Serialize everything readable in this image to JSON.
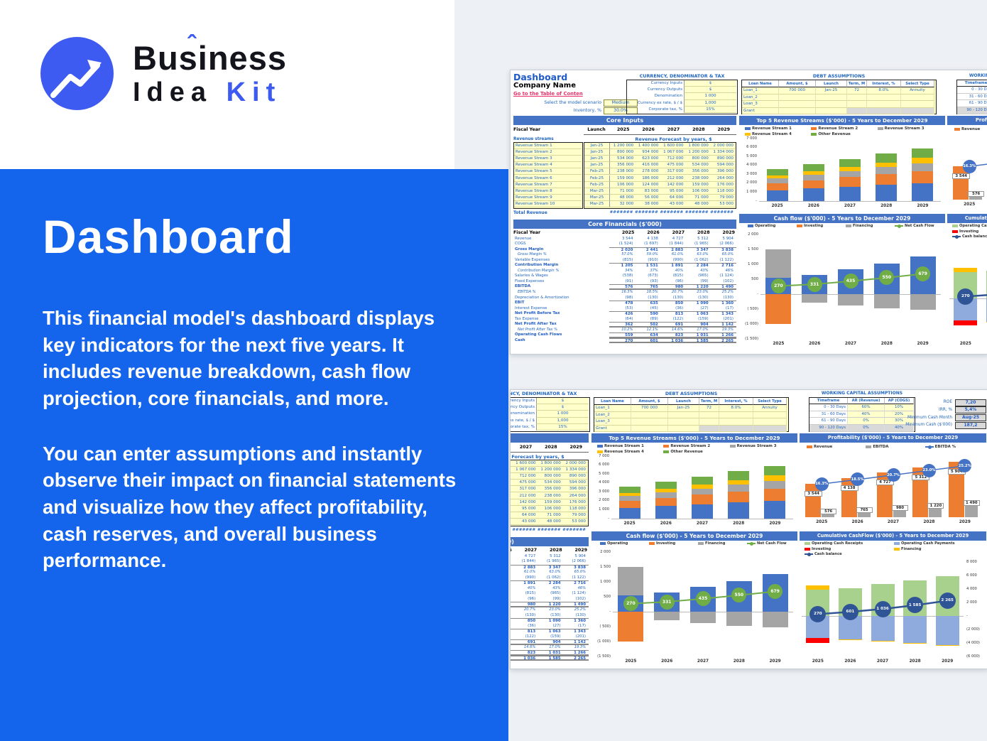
{
  "page": {
    "brand": {
      "word1": "Business",
      "accent": "ˆ",
      "word2": "Idea",
      "word3": "Kit"
    },
    "hero": {
      "title": "Dashboard",
      "p1": "This financial model's dashboard displays key indicators for the next five years. It includes revenue breakdown, cash flow projection, core financials, and more.",
      "p2": "You can enter assumptions and instantly observe their impact on financial statements and visualize how they affect profitability, cash reserves, and overall business performance."
    },
    "colors": {
      "hero_blue": "#1565ec",
      "logo_blue": "#3d5af1",
      "band_gray": "#edf0f4",
      "banner_blue": "#4472c4",
      "cell_yellow": "#ffffcc",
      "label_blue": "#2166c0",
      "link_red": "#e8336d"
    }
  },
  "sheet": {
    "header": {
      "title": "Dashboard",
      "company": "Company Name",
      "link": "Go to the Table of Conten",
      "scenario_label": "Select the model scenario",
      "scenario_value": "Medium",
      "inventory_label": "Inventory, %",
      "inventory_value": "30.0%"
    },
    "currency": {
      "title": "CURRENCY, DENOMINATOR & TAX",
      "rows": [
        [
          "Currency Inputs",
          "$"
        ],
        [
          "Currency Outputs",
          "$"
        ],
        [
          "Denomination",
          "1 000"
        ],
        [
          "Currency ex rate, $ / $",
          "1,000"
        ],
        [
          "Corporate tax, %",
          "15%"
        ]
      ]
    },
    "debt": {
      "title": "DEBT ASSUMPTIONS",
      "headers": [
        "Loan Name",
        "Amount, $",
        "Launch",
        "Term, M",
        "Interest, %",
        "Select Type"
      ],
      "rows": [
        [
          "Loan_1",
          "700 000",
          "Jan-25",
          "72",
          "8.0%",
          "Annuity"
        ],
        [
          "Loan_2",
          "",
          "",
          "",
          "",
          ""
        ],
        [
          "Loan_3",
          "",
          "",
          "",
          "",
          ""
        ],
        [
          "Grant",
          "",
          "",
          "",
          "",
          ""
        ]
      ]
    },
    "working": {
      "title": "WORKING CAPITAL ASSUMPTIONS",
      "headers": [
        "Timeframe",
        "AR (Revenue)",
        "AP (COGS)"
      ],
      "rows": [
        [
          "0 - 30 Days",
          "60%",
          "10%"
        ],
        [
          "31 - 60 Days",
          "40%",
          "20%"
        ],
        [
          "61 - 90 Days",
          "0%",
          "30%"
        ],
        [
          "90 - 120 Days",
          "0%",
          "40%"
        ]
      ]
    },
    "kpis": [
      [
        "ROE",
        "7,20"
      ],
      [
        "IRR, %",
        "5,4%"
      ],
      [
        "Minimum Cash Month",
        "Aug-25"
      ],
      [
        "Minimum Cash ($'000)",
        "187,2"
      ]
    ],
    "core_inputs": {
      "banner": "Core Inputs",
      "fiscal_label": "Fiscal Year",
      "launch_label": "Launch",
      "years": [
        "2025",
        "2026",
        "2027",
        "2028",
        "2029"
      ],
      "streams_label": "Revenue streams",
      "forecast_label": "Revenue Forecast by years, $",
      "streams": [
        {
          "name": "Revenue Stream 1",
          "launch": "Jan-25",
          "values": [
            "1 200 000",
            "1 400 000",
            "1 600 000",
            "1 800 000",
            "2 000 000"
          ]
        },
        {
          "name": "Revenue Stream 2",
          "launch": "Jan-25",
          "values": [
            "800 000",
            "934 000",
            "1 067 000",
            "1 200 000",
            "1 334 000"
          ]
        },
        {
          "name": "Revenue Stream 3",
          "launch": "Jan-25",
          "values": [
            "534 000",
            "623 000",
            "712 000",
            "800 000",
            "890 000"
          ]
        },
        {
          "name": "Revenue Stream 4",
          "launch": "Jan-25",
          "values": [
            "356 000",
            "416 000",
            "475 000",
            "534 000",
            "594 000"
          ]
        },
        {
          "name": "Revenue Stream 5",
          "launch": "Feb-25",
          "values": [
            "238 000",
            "278 000",
            "317 000",
            "356 000",
            "396 000"
          ]
        },
        {
          "name": "Revenue Stream 6",
          "launch": "Feb-25",
          "values": [
            "159 000",
            "186 000",
            "212 000",
            "238 000",
            "264 000"
          ]
        },
        {
          "name": "Revenue Stream 7",
          "launch": "Feb-25",
          "values": [
            "106 000",
            "124 000",
            "142 000",
            "159 000",
            "176 000"
          ]
        },
        {
          "name": "Revenue Stream 8",
          "launch": "Mar-25",
          "values": [
            "71 000",
            "83 000",
            "95 000",
            "106 000",
            "118 000"
          ]
        },
        {
          "name": "Revenue Stream 9",
          "launch": "Mar-25",
          "values": [
            "48 000",
            "56 000",
            "64 000",
            "71 000",
            "79 000"
          ]
        },
        {
          "name": "Revenue Stream 10",
          "launch": "Mar-25",
          "values": [
            "32 000",
            "38 000",
            "43 000",
            "48 000",
            "53 000"
          ]
        }
      ],
      "total_label": "Total Revenue",
      "total_values": [
        "#######",
        "#######",
        "#######",
        "#######",
        "#######"
      ]
    },
    "core_fin": {
      "banner": "Core Financials ($'000)",
      "fiscal_label": "Fiscal Year",
      "years": [
        "2025",
        "2026",
        "2027",
        "2028",
        "2029"
      ],
      "rows": [
        {
          "l": "Revenue",
          "s": "p",
          "b": "",
          "v": [
            "3 544",
            "4 138",
            "4 727",
            "5 312",
            "5 904"
          ]
        },
        {
          "l": "COGS",
          "s": "p",
          "b": "",
          "v": [
            "(1 524)",
            "(1 697)",
            "(1 844)",
            "(1 965)",
            "(2 066)"
          ]
        },
        {
          "l": "Gross Margin",
          "s": "b",
          "b": "t",
          "v": [
            "2 020",
            "2 441",
            "2 883",
            "3 347",
            "3 838"
          ]
        },
        {
          "l": "Gross Margin %",
          "s": "i",
          "b": "",
          "v": [
            "57.0%",
            "59.0%",
            "61.0%",
            "63.0%",
            "65.0%"
          ]
        },
        {
          "l": "Variable Expenses",
          "s": "p",
          "b": "",
          "v": [
            "(815)",
            "(910)",
            "(990)",
            "(1 062)",
            "(1 122)"
          ]
        },
        {
          "l": "Contribution Margin",
          "s": "b",
          "b": "t",
          "v": [
            "1 205",
            "1 531",
            "1 891",
            "2 284",
            "2 716"
          ]
        },
        {
          "l": "Contribution Margin %",
          "s": "i",
          "b": "",
          "v": [
            "34%",
            "37%",
            "40%",
            "43%",
            "46%"
          ]
        },
        {
          "l": "Salaries & Wages",
          "s": "p",
          "b": "",
          "v": [
            "(538)",
            "(673)",
            "(815)",
            "(965)",
            "(1 124)"
          ]
        },
        {
          "l": "Fixed Expenses",
          "s": "p",
          "b": "",
          "v": [
            "(91)",
            "(93)",
            "(96)",
            "(99)",
            "(102)"
          ]
        },
        {
          "l": "EBITDA",
          "s": "b",
          "b": "d",
          "v": [
            "576",
            "765",
            "980",
            "1 220",
            "1 490"
          ]
        },
        {
          "l": "EBITDA %",
          "s": "i",
          "b": "",
          "v": [
            "16.3%",
            "18.5%",
            "20.7%",
            "23.0%",
            "25.2%"
          ]
        },
        {
          "l": "Depreciation & Amortization",
          "s": "p",
          "b": "",
          "v": [
            "(98)",
            "(130)",
            "(130)",
            "(130)",
            "(130)"
          ]
        },
        {
          "l": "EBIT",
          "s": "b",
          "b": "t",
          "v": [
            "478",
            "635",
            "850",
            "1 090",
            "1 360"
          ]
        },
        {
          "l": "Interest Expense",
          "s": "p",
          "b": "",
          "v": [
            "(53)",
            "(45)",
            "(36)",
            "(27)",
            "(17)"
          ]
        },
        {
          "l": "Net Profit Before Tax",
          "s": "b",
          "b": "t",
          "v": [
            "426",
            "590",
            "813",
            "1 063",
            "1 343"
          ]
        },
        {
          "l": "Tax Expense",
          "s": "p",
          "b": "",
          "v": [
            "(64)",
            "(89)",
            "(122)",
            "(159)",
            "(201)"
          ]
        },
        {
          "l": "Net Profit After Tax",
          "s": "b",
          "b": "d",
          "v": [
            "362",
            "502",
            "691",
            "904",
            "1 142"
          ]
        },
        {
          "l": "Net Profit After Tax %",
          "s": "i",
          "b": "",
          "v": [
            "10.2%",
            "12.1%",
            "14.6%",
            "17.0%",
            "19.3%"
          ]
        },
        {
          "l": "Operating Cash Flows",
          "s": "b",
          "b": "d",
          "v": [
            "559",
            "634",
            "823",
            "1 031",
            "1 266"
          ]
        },
        {
          "l": "Cash",
          "s": "b",
          "b": "d",
          "v": [
            "270",
            "601",
            "1 036",
            "1 585",
            "2 265"
          ]
        }
      ]
    }
  },
  "chart_data": [
    {
      "id": "top5",
      "type": "bar",
      "title": "Top 5 Revenue Streams ($'000) - 5 Years to December 2029",
      "categories": [
        "2025",
        "2026",
        "2027",
        "2028",
        "2029"
      ],
      "legend": [
        [
          "Revenue Stream 1",
          "#4472c4"
        ],
        [
          "Revenue Stream 2",
          "#ed7d31"
        ],
        [
          "Revenue Stream 3",
          "#a5a5a5"
        ],
        [
          "Revenue Stream 4",
          "#ffc000"
        ],
        [
          "Other Revenue",
          "#70ad47"
        ]
      ],
      "series": [
        {
          "name": "Revenue Stream 1",
          "color": "#4472c4",
          "values": [
            1200,
            1400,
            1600,
            1800,
            2000
          ]
        },
        {
          "name": "Revenue Stream 2",
          "color": "#ed7d31",
          "values": [
            800,
            934,
            1067,
            1200,
            1334
          ]
        },
        {
          "name": "Revenue Stream 3",
          "color": "#a5a5a5",
          "values": [
            534,
            623,
            712,
            800,
            890
          ]
        },
        {
          "name": "Revenue Stream 4",
          "color": "#ffc000",
          "values": [
            356,
            416,
            475,
            534,
            594
          ]
        },
        {
          "name": "Other Revenue",
          "color": "#70ad47",
          "values": [
            654,
            765,
            873,
            978,
            1086
          ]
        }
      ],
      "ylim": [
        0,
        7000
      ],
      "ytick_values": [
        7000,
        6000,
        5000,
        4000,
        3000,
        2000,
        1000,
        0
      ],
      "ytick_labels": [
        "7 000",
        "6 000",
        "5 000",
        "4 000",
        "3 000",
        "2 000",
        "1 000",
        "-"
      ]
    },
    {
      "id": "profit",
      "type": "bar",
      "title": "Profitability ($'000) - 5 Years to December 2029",
      "categories": [
        "2025",
        "2026",
        "2027",
        "2028",
        "2029"
      ],
      "legend": [
        [
          "Revenue",
          "#ed7d31"
        ],
        [
          "EBITDA",
          "#a5a5a5"
        ],
        [
          "EBITDA %",
          "#4472c4",
          "line"
        ]
      ],
      "revenue": {
        "values": [
          3544,
          4138,
          4727,
          5312,
          5904
        ],
        "labels": [
          "3 544",
          "4 138",
          "4 727",
          "5 312",
          "5 904"
        ],
        "color": "#ed7d31"
      },
      "ebitda": {
        "values": [
          576,
          765,
          980,
          1220,
          1490
        ],
        "labels": [
          "576",
          "765",
          "980",
          "1 220",
          "1 490"
        ],
        "color": "#a5a5a5"
      },
      "ebitda_pct": {
        "values": [
          16.3,
          18.5,
          20.7,
          23.0,
          25.2
        ],
        "labels": [
          "16.3%",
          "18.5%",
          "20.7%",
          "23.0%",
          "25.2%"
        ],
        "color": "#4472c4",
        "axis": [
          0,
          30
        ]
      },
      "ylim": [
        0,
        6500
      ]
    },
    {
      "id": "cash",
      "type": "bar",
      "title": "Cash flow ($'000) - 5 Years to December 2029",
      "categories": [
        "2025",
        "2026",
        "2027",
        "2028",
        "2029"
      ],
      "legend": [
        [
          "Operating",
          "#4472c4"
        ],
        [
          "Investing",
          "#ed7d31"
        ],
        [
          "Financing",
          "#a5a5a5"
        ],
        [
          "Net Cash Flow",
          "#70ad47",
          "line"
        ]
      ],
      "stacks": [
        [
          [
            "#4472c4",
            559
          ],
          [
            "#a5a5a5",
            950
          ],
          [
            "#ed7d31",
            -1000
          ]
        ],
        [
          [
            "#4472c4",
            634
          ],
          [
            "#a5a5a5",
            -280
          ]
        ],
        [
          [
            "#4472c4",
            823
          ],
          [
            "#a5a5a5",
            -380
          ]
        ],
        [
          [
            "#4472c4",
            1031
          ],
          [
            "#a5a5a5",
            -480
          ]
        ],
        [
          [
            "#4472c4",
            1266
          ],
          [
            "#a5a5a5",
            -520
          ]
        ]
      ],
      "line": {
        "name": "Net Cash Flow",
        "color": "#70ad47",
        "values": [
          270,
          331,
          435,
          550,
          679
        ],
        "labels": [
          "270",
          "331",
          "435",
          "550",
          "679"
        ]
      },
      "ylim": [
        -1500,
        2000
      ],
      "ytick_values": [
        2000,
        1500,
        1000,
        500,
        0,
        -500,
        -1000,
        -1500
      ],
      "ytick_labels": [
        "2 000",
        "1 500",
        "1 000",
        "500",
        "-",
        "( 500)",
        "(1 000)",
        "(1 500)"
      ]
    },
    {
      "id": "cumul",
      "type": "bar",
      "title": "Cumulative CashFlow ($'000) - 5 Years to December 2029",
      "categories": [
        "2025",
        "2026",
        "2027",
        "2028",
        "2029"
      ],
      "legend": [
        [
          "Operating Cash Receipts",
          "#a9d18e"
        ],
        [
          "Operating Cash Payments",
          "#8faadc"
        ],
        [
          "Investing",
          "#ff0000"
        ],
        [
          "Financing",
          "#ffc000"
        ],
        [
          "Cash balance",
          "#2f5597",
          "line"
        ]
      ],
      "stacks": [
        [
          [
            "#a9d18e",
            3850
          ],
          [
            "#ffc000",
            700
          ],
          [
            "#8faadc",
            -3280
          ],
          [
            "#ff0000",
            -700
          ]
        ],
        [
          [
            "#a9d18e",
            4150
          ],
          [
            "#8faadc",
            -3500
          ],
          [
            "#ffc000",
            -60
          ]
        ],
        [
          [
            "#a9d18e",
            4700
          ],
          [
            "#8faadc",
            -3650
          ],
          [
            "#ffc000",
            -70
          ]
        ],
        [
          [
            "#a9d18e",
            5250
          ],
          [
            "#8faadc",
            -3950
          ],
          [
            "#ffc000",
            -80
          ]
        ],
        [
          [
            "#a9d18e",
            5900
          ],
          [
            "#8faadc",
            -4350
          ],
          [
            "#ffc000",
            -100
          ]
        ]
      ],
      "line": {
        "name": "Cash balance",
        "color": "#2f5597",
        "values": [
          270,
          601,
          1036,
          1585,
          2265
        ],
        "labels": [
          "270",
          "601",
          "1 036",
          "1 585",
          "2 265"
        ]
      },
      "ylim": [
        -6000,
        8000
      ],
      "ytick_values": [
        8000,
        6000,
        4000,
        2000,
        0,
        -2000,
        -4000,
        -6000
      ],
      "ytick_labels": [
        "8 000",
        "6 000",
        "4 000",
        "2 000",
        "-",
        "(2 000)",
        "(4 000)",
        "(6 000)"
      ]
    }
  ]
}
